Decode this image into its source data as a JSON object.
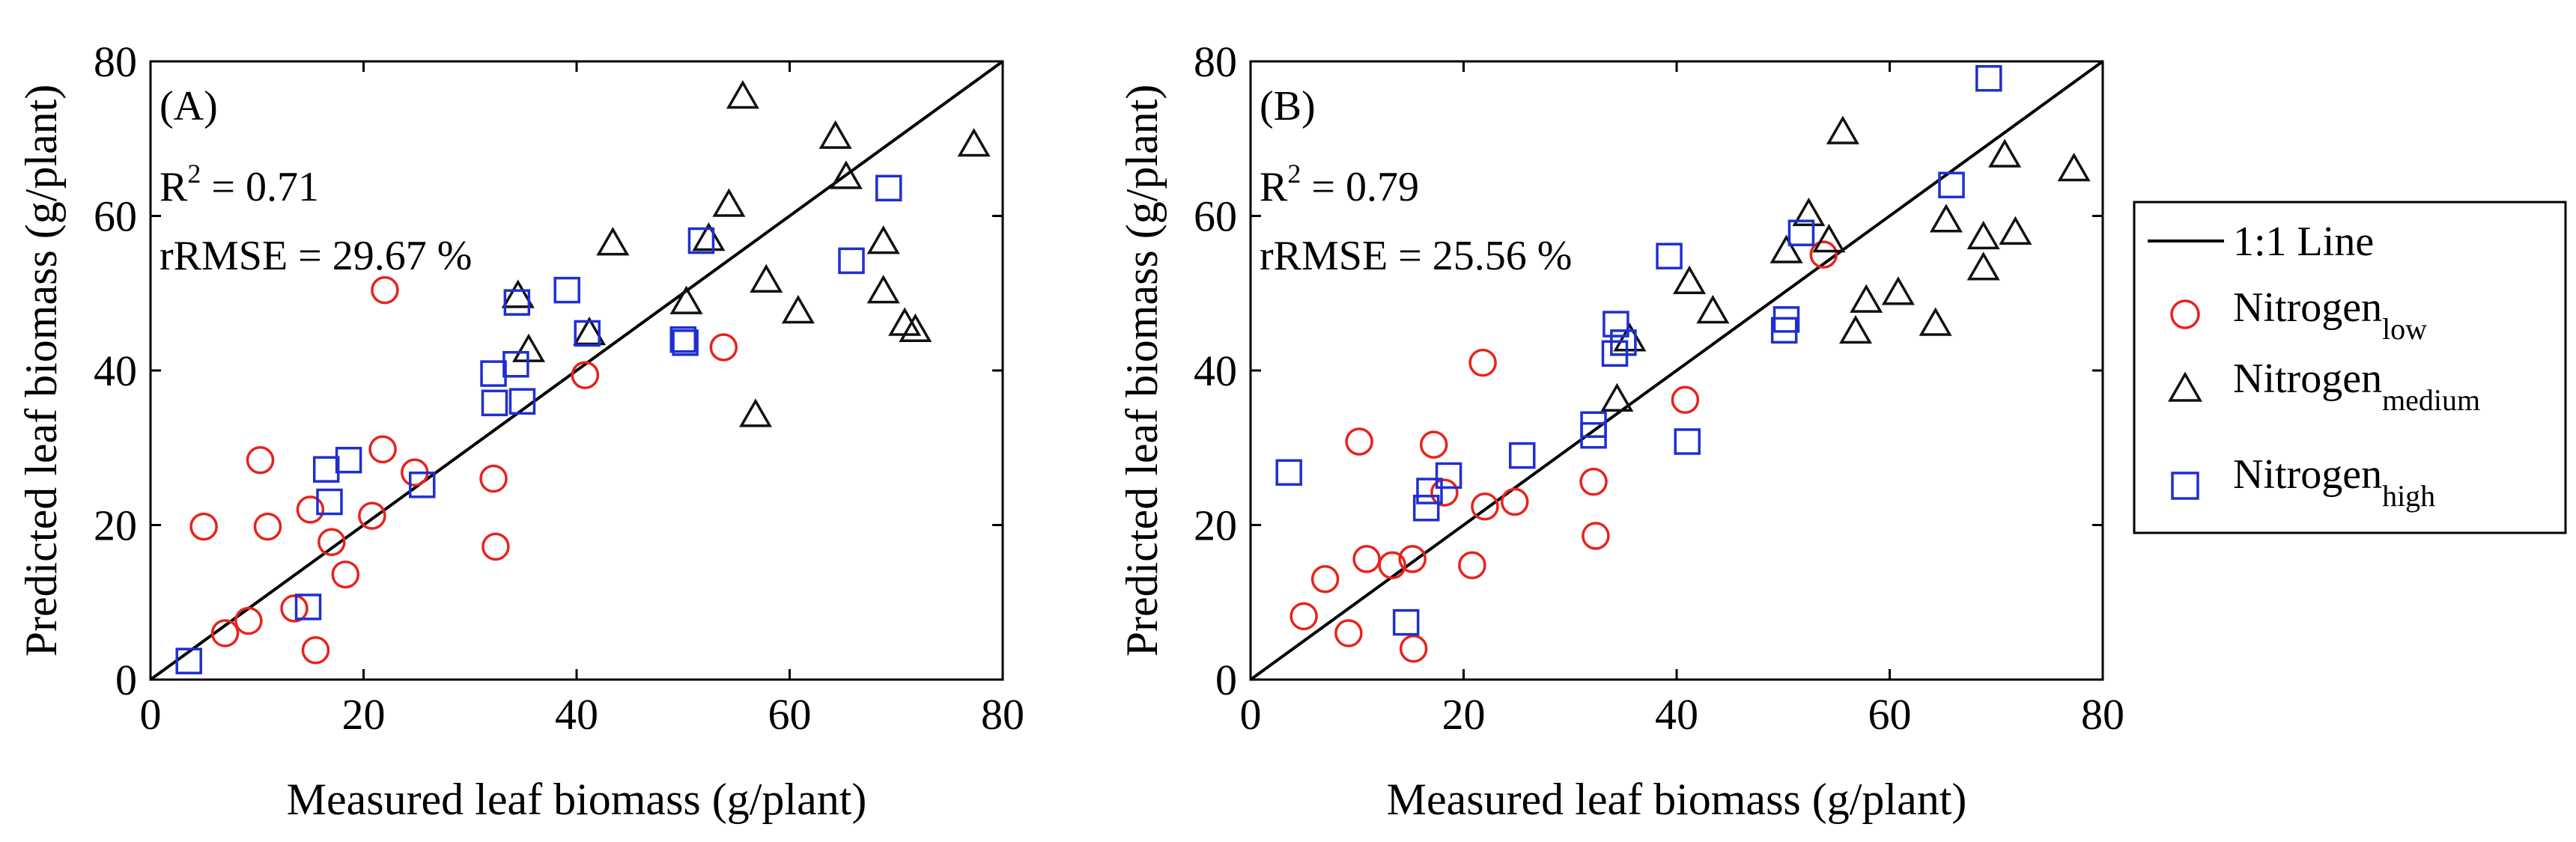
{
  "figure": {
    "legend": {
      "line_label": "1:1 Line",
      "low": {
        "base": "Nitrogen",
        "sub": "low"
      },
      "medium": {
        "base": "Nitrogen",
        "sub": "medium"
      },
      "high": {
        "base": "Nitrogen",
        "sub": "high"
      }
    }
  },
  "chart_data": [
    {
      "type": "scatter",
      "panel_label": "(A)",
      "r2_prefix": "R",
      "r2_exp": "2",
      "r2_value": " = 0.71",
      "rrmse_text": "rRMSE = 29.67 %",
      "xlabel": "Measured leaf biomass (g/plant)",
      "ylabel": "Predicted leaf biomass (g/plant)",
      "xlim": [
        0,
        80
      ],
      "ylim": [
        0,
        80
      ],
      "xticks": [
        0,
        20,
        40,
        60,
        80
      ],
      "yticks": [
        0,
        20,
        40,
        60,
        80
      ],
      "reference_line": "1:1",
      "series": [
        {
          "name": "Nitrogen_low",
          "marker": "circle",
          "color": "#e8221b",
          "points": [
            [
              5,
              19.8
            ],
            [
              7,
              6
            ],
            [
              9.2,
              7.6
            ],
            [
              10.3,
              28.4
            ],
            [
              11,
              19.8
            ],
            [
              13.5,
              9.2
            ],
            [
              15,
              22
            ],
            [
              15.5,
              3.8
            ],
            [
              17,
              17.8
            ],
            [
              18.3,
              13.6
            ],
            [
              20.8,
              21.2
            ],
            [
              21.8,
              29.8
            ],
            [
              22,
              50.4
            ],
            [
              24.8,
              26.8
            ],
            [
              32.2,
              26
            ],
            [
              32.4,
              17.2
            ],
            [
              40.8,
              39.4
            ],
            [
              53.8,
              43
            ]
          ]
        },
        {
          "name": "Nitrogen_medium",
          "marker": "triangle",
          "color": "#111111",
          "points": [
            [
              34.5,
              49.6
            ],
            [
              35.5,
              42.6
            ],
            [
              41.2,
              44.8
            ],
            [
              43.4,
              56.4
            ],
            [
              50.3,
              48.8
            ],
            [
              52.4,
              57
            ],
            [
              54.3,
              61.4
            ],
            [
              55.6,
              75.4
            ],
            [
              56.8,
              34.2
            ],
            [
              57.8,
              51.6
            ],
            [
              60.8,
              47.6
            ],
            [
              64.3,
              70.2
            ],
            [
              65.3,
              65
            ],
            [
              68.8,
              56.6
            ],
            [
              68.8,
              50.2
            ],
            [
              70.8,
              46
            ],
            [
              71.8,
              45.2
            ],
            [
              77.3,
              69.2
            ]
          ]
        },
        {
          "name": "Nitrogen_high",
          "marker": "square",
          "color": "#1f2fd1",
          "points": [
            [
              3.6,
              2.4
            ],
            [
              14.8,
              9.4
            ],
            [
              16.5,
              27.2
            ],
            [
              16.8,
              23
            ],
            [
              18.6,
              28.4
            ],
            [
              25.5,
              25.2
            ],
            [
              32.2,
              39.6
            ],
            [
              32.3,
              35.8
            ],
            [
              34.3,
              40.8
            ],
            [
              34.4,
              48.8
            ],
            [
              34.9,
              36
            ],
            [
              39.1,
              50.4
            ],
            [
              41,
              44.8
            ],
            [
              50,
              44
            ],
            [
              50.2,
              43.6
            ],
            [
              51.7,
              56.8
            ],
            [
              65.8,
              54.2
            ],
            [
              69.3,
              63.6
            ]
          ]
        }
      ]
    },
    {
      "type": "scatter",
      "panel_label": "(B)",
      "r2_prefix": "R",
      "r2_exp": "2",
      "r2_value": " = 0.79",
      "rrmse_text": "rRMSE = 25.56 %",
      "xlabel": "Measured leaf biomass (g/plant)",
      "ylabel": "Predicted leaf biomass (g/plant)",
      "xlim": [
        0,
        80
      ],
      "ylim": [
        0,
        80
      ],
      "xticks": [
        0,
        20,
        40,
        60,
        80
      ],
      "yticks": [
        0,
        20,
        40,
        60,
        80
      ],
      "reference_line": "1:1",
      "series": [
        {
          "name": "Nitrogen_low",
          "marker": "circle",
          "color": "#e8221b",
          "points": [
            [
              5,
              8.2
            ],
            [
              7,
              13
            ],
            [
              9.2,
              6
            ],
            [
              10.2,
              30.8
            ],
            [
              10.9,
              15.6
            ],
            [
              13.3,
              14.8
            ],
            [
              15.2,
              15.6
            ],
            [
              15.3,
              4
            ],
            [
              17.2,
              30.4
            ],
            [
              18.2,
              24.2
            ],
            [
              20.8,
              14.8
            ],
            [
              21.8,
              41
            ],
            [
              22,
              22.4
            ],
            [
              24.8,
              23
            ],
            [
              32.2,
              25.6
            ],
            [
              32.4,
              18.6
            ],
            [
              40.8,
              36.2
            ],
            [
              53.8,
              55
            ]
          ]
        },
        {
          "name": "Nitrogen_medium",
          "marker": "triangle",
          "color": "#111111",
          "points": [
            [
              34.4,
              36.2
            ],
            [
              35.6,
              44
            ],
            [
              41.2,
              51.4
            ],
            [
              43.4,
              47.6
            ],
            [
              50.3,
              55.4
            ],
            [
              52.4,
              60.2
            ],
            [
              54.3,
              56.8
            ],
            [
              55.6,
              70.8
            ],
            [
              56.8,
              45
            ],
            [
              57.8,
              49
            ],
            [
              60.8,
              50
            ],
            [
              64.3,
              46
            ],
            [
              65.3,
              59.4
            ],
            [
              68.8,
              53.2
            ],
            [
              68.8,
              57.2
            ],
            [
              70.8,
              67.8
            ],
            [
              71.8,
              57.8
            ],
            [
              77.3,
              66
            ]
          ]
        },
        {
          "name": "Nitrogen_high",
          "marker": "square",
          "color": "#1f2fd1",
          "points": [
            [
              3.6,
              26.8
            ],
            [
              14.6,
              7.4
            ],
            [
              16.5,
              22.2
            ],
            [
              16.8,
              24.4
            ],
            [
              18.6,
              26.4
            ],
            [
              25.5,
              29
            ],
            [
              32.2,
              33
            ],
            [
              32.2,
              31.6
            ],
            [
              34.2,
              42.2
            ],
            [
              34.3,
              46
            ],
            [
              35,
              43.6
            ],
            [
              39.3,
              54.8
            ],
            [
              41,
              30.8
            ],
            [
              50.1,
              45.2
            ],
            [
              50.3,
              46.6
            ],
            [
              51.7,
              57.8
            ],
            [
              65.8,
              64
            ],
            [
              69.3,
              77.8
            ]
          ]
        }
      ]
    }
  ]
}
